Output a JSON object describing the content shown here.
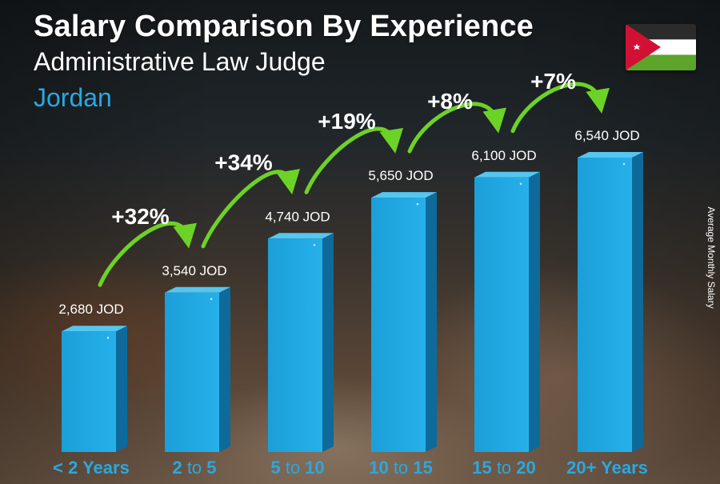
{
  "header": {
    "title": "Salary Comparison By Experience",
    "subtitle": "Administrative Law Judge",
    "location": "Jordan"
  },
  "side_label": "Average Monthly Salary",
  "flag": {
    "stripes": [
      "#2b2b2b",
      "#ffffff",
      "#5da42b"
    ],
    "triangle": "#d21034",
    "star": "#ffffff"
  },
  "colors": {
    "bar_front": "#1fa6df",
    "bar_side": "#0e6a9a",
    "bar_top": "#55c6f0",
    "arrow": "#6dd226",
    "category": "#2aa8e0",
    "value_label": "#ffffff"
  },
  "chart_data": {
    "type": "bar",
    "title": "Salary Comparison By Experience",
    "subtitle": "Administrative Law Judge",
    "ylabel": "Average Monthly Salary",
    "unit": "JOD",
    "ylim": [
      0,
      6540
    ],
    "categories": [
      [
        {
          "t": "< 2 Years",
          "b": true
        }
      ],
      [
        {
          "t": "2",
          "b": true
        },
        {
          "t": " to ",
          "b": false
        },
        {
          "t": "5",
          "b": true
        }
      ],
      [
        {
          "t": "5",
          "b": true
        },
        {
          "t": " to ",
          "b": false
        },
        {
          "t": "10",
          "b": true
        }
      ],
      [
        {
          "t": "10",
          "b": true
        },
        {
          "t": " to ",
          "b": false
        },
        {
          "t": "15",
          "b": true
        }
      ],
      [
        {
          "t": "15",
          "b": true
        },
        {
          "t": " to ",
          "b": false
        },
        {
          "t": "20",
          "b": true
        }
      ],
      [
        {
          "t": "20+ Years",
          "b": true
        }
      ]
    ],
    "values": [
      2680,
      3540,
      4740,
      5650,
      6100,
      6540
    ],
    "value_labels": [
      "2,680 JOD",
      "3,540 JOD",
      "4,740 JOD",
      "5,650 JOD",
      "6,100 JOD",
      "6,540 JOD"
    ],
    "increases": [
      "+32%",
      "+34%",
      "+19%",
      "+8%",
      "+7%"
    ]
  }
}
